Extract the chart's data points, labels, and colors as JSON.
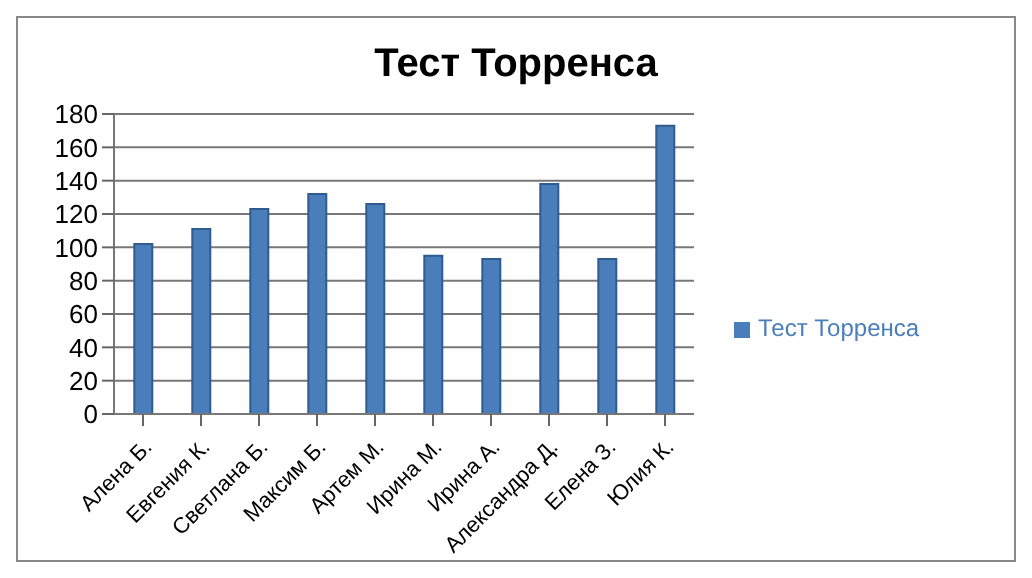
{
  "chart_data": {
    "type": "bar",
    "title": "Тест Торренса",
    "categories": [
      "Алена Б.",
      "Евгения К.",
      "Светлана Б.",
      "Максим Б.",
      "Артем М.",
      "Ирина М.",
      "Ирина А.",
      "Александра Д.",
      "Елена З.",
      "Юлия К."
    ],
    "series": [
      {
        "name": "Тест Торренса",
        "color": "#4a7ebb",
        "values": [
          102,
          111,
          123,
          132,
          126,
          95,
          93,
          138,
          93,
          173
        ]
      }
    ],
    "ylim": [
      0,
      180
    ],
    "yticks": [
      0,
      20,
      40,
      60,
      80,
      100,
      120,
      140,
      160,
      180
    ],
    "grid": "y",
    "legend": "right"
  }
}
